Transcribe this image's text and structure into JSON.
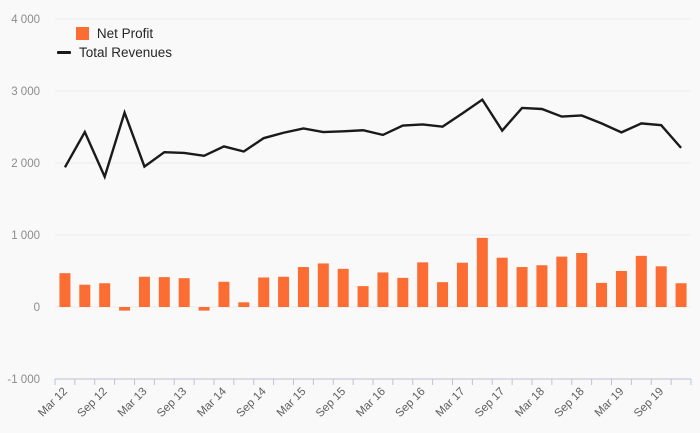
{
  "chart": {
    "theme": {
      "background": "#f9f9f9",
      "grid_color": "#ececec",
      "axis_color": "#b9c4d5",
      "y_label_color": "#8c8c8c",
      "x_label_color": "#5f5f5f",
      "legend_text_color": "#262626"
    }
  },
  "chart_data": {
    "type": "combo (bar + line)",
    "title": "",
    "xlabel": "",
    "ylabel": "",
    "ylim": [
      -1000,
      4000
    ],
    "grid": true,
    "legend_position": "top-left",
    "y_ticks": [
      -1000,
      0,
      1000,
      2000,
      3000,
      4000
    ],
    "y_tick_labels": [
      "-1 000",
      "0",
      "1 000",
      "2 000",
      "3 000",
      "4 000"
    ],
    "categories": [
      "Mar 12",
      "Jun 12",
      "Sep 12",
      "Dec 12",
      "Mar 13",
      "Jun 13",
      "Sep 13",
      "Dec 13",
      "Mar 14",
      "Jun 14",
      "Sep 14",
      "Dec 14",
      "Mar 15",
      "Jun 15",
      "Sep 15",
      "Dec 15",
      "Mar 16",
      "Jun 16",
      "Sep 16",
      "Dec 16",
      "Mar 17",
      "Jun 17",
      "Sep 17",
      "Dec 17",
      "Mar 18",
      "Jun 18",
      "Sep 18",
      "Dec 18",
      "Mar 19",
      "Jun 19",
      "Sep 19",
      "Dec 19"
    ],
    "visible_x_labels": [
      "Mar 12",
      "Sep 12",
      "Mar 13",
      "Sep 13",
      "Mar 14",
      "Sep 14",
      "Mar 15",
      "Sep 15",
      "Mar 16",
      "Sep 16",
      "Mar 17",
      "Sep 17",
      "Mar 18",
      "Sep 18",
      "Mar 19",
      "Sep 19"
    ],
    "series": [
      {
        "name": "Net Profit",
        "type": "bar",
        "color": "#fb6d33",
        "values": [
          470,
          310,
          330,
          -50,
          420,
          415,
          400,
          -50,
          350,
          65,
          410,
          420,
          555,
          605,
          530,
          290,
          480,
          405,
          620,
          345,
          615,
          960,
          685,
          555,
          580,
          700,
          750,
          335,
          500,
          710,
          565,
          330
        ]
      },
      {
        "name": "Total Revenues",
        "type": "line",
        "color": "#1a1a1a",
        "values": [
          1940,
          2430,
          1810,
          2700,
          1950,
          2150,
          2140,
          2100,
          2230,
          2160,
          2345,
          2420,
          2480,
          2430,
          2440,
          2455,
          2390,
          2520,
          2535,
          2505,
          2690,
          2880,
          2450,
          2765,
          2750,
          2645,
          2660,
          2550,
          2425,
          2550,
          2525,
          2210
        ]
      }
    ]
  }
}
